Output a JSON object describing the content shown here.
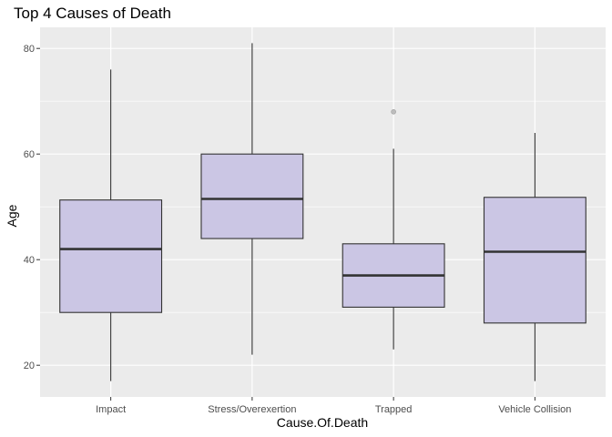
{
  "chart_data": {
    "type": "boxplot",
    "title": "Top 4 Causes of Death",
    "xlabel": "Cause.Of.Death",
    "ylabel": "Age",
    "categories": [
      "Impact",
      "Stress/Overexertion",
      "Trapped",
      "Vehicle Collision"
    ],
    "boxes": [
      {
        "category": "Impact",
        "min": 17,
        "q1": 30,
        "median": 42,
        "q3": 51.3,
        "max": 76,
        "outliers": []
      },
      {
        "category": "Stress/Overexertion",
        "min": 22,
        "q1": 44,
        "median": 51.5,
        "q3": 60,
        "max": 81,
        "outliers": []
      },
      {
        "category": "Trapped",
        "min": 23,
        "q1": 31,
        "median": 37,
        "q3": 43,
        "max": 61,
        "outliers": [
          68
        ]
      },
      {
        "category": "Vehicle Collision",
        "min": 17,
        "q1": 28,
        "median": 41.5,
        "q3": 51.8,
        "max": 64,
        "outliers": []
      }
    ],
    "ylim": [
      14,
      84
    ],
    "yticks": [
      20,
      40,
      60,
      80
    ],
    "grid": true,
    "legend": "none",
    "colors": {
      "box_fill": "#cbc6e4",
      "box_stroke": "#333333",
      "panel_background": "#ebebeb",
      "grid": "#ffffff",
      "outlier": "#bdbdbd"
    }
  }
}
